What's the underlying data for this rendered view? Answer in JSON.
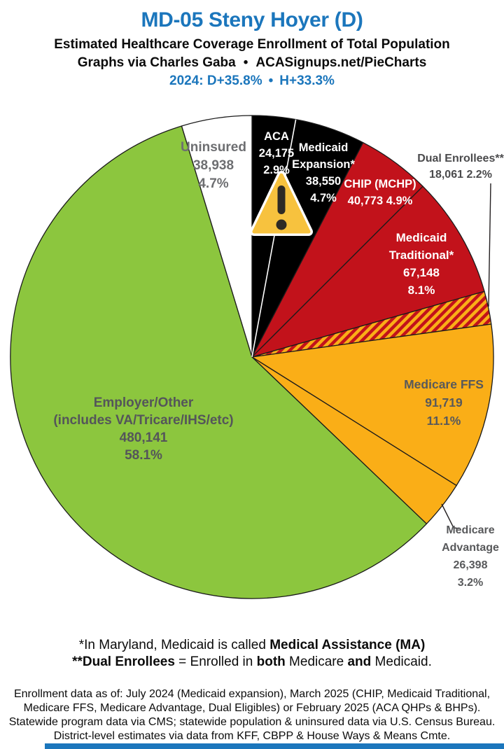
{
  "page": {
    "accent_blue": "#1B76BC",
    "background": "#FFFFFF"
  },
  "header": {
    "title": "MD-05 Steny Hoyer (D)",
    "subtitle": "Estimated Healthcare Coverage Enrollment of Total Population",
    "credit_left": "Graphs via Charles Gaba",
    "bullet": "•",
    "credit_right": "ACASignups.net/PieCharts",
    "partisan_left": "2024: D+35.8%",
    "partisan_right": "H+33.3%"
  },
  "chart_data": {
    "type": "pie",
    "title": "MD-05 Steny Hoyer (D) — Estimated Healthcare Coverage Enrollment of Total Population",
    "units": "people",
    "start_angle_deg": 0,
    "direction": "clockwise",
    "outline_color": "#1B1B1B",
    "slices": [
      {
        "id": "aca",
        "name": "ACA",
        "value": 24175,
        "pct": 2.9,
        "color": "#000000",
        "label_color": "#FFFFFF",
        "label_lines": [
          "ACA",
          "24,175",
          "2.9%"
        ]
      },
      {
        "id": "medicaid_expansion",
        "name": "Medicaid Expansion*",
        "value": 38550,
        "pct": 4.7,
        "color": "#000000",
        "label_color": "#FFFFFF",
        "label_lines": [
          "Medicaid",
          "Expansion*",
          "38,550",
          "4.7%"
        ]
      },
      {
        "id": "chip",
        "name": "CHIP (MCHP)",
        "value": 40773,
        "pct": 4.9,
        "color": "#C2121B",
        "label_color": "#FFFFFF",
        "label_lines": [
          "CHIP (MCHP)",
          "40,773 4.9%"
        ]
      },
      {
        "id": "medicaid_traditional",
        "name": "Medicaid Traditional*",
        "value": 67148,
        "pct": 8.1,
        "color": "#C2121B",
        "label_color": "#FFFFFF",
        "label_lines": [
          "Medicaid",
          "Traditional*",
          "67,148",
          "8.1%"
        ]
      },
      {
        "id": "dual_enrollees",
        "name": "Dual Enrollees**",
        "value": 18061,
        "pct": 2.2,
        "color": "hatch",
        "pattern": {
          "stripe": "#C2121B",
          "bg": "#FAAE17"
        },
        "label_color": "#4A4A4C",
        "label_lines": [
          "Dual Enrollees**",
          "18,061 2.2%"
        ]
      },
      {
        "id": "medicare_ffs",
        "name": "Medicare FFS",
        "value": 91719,
        "pct": 11.1,
        "color": "#FAAE17",
        "label_color": "#58595B",
        "label_lines": [
          "Medicare FFS",
          "91,719",
          "11.1%"
        ]
      },
      {
        "id": "medicare_advantage",
        "name": "Medicare Advantage",
        "value": 26398,
        "pct": 3.2,
        "color": "#FAAE17",
        "label_color": "#58595B",
        "label_lines": [
          "Medicare",
          "Advantage",
          "26,398",
          "3.2%"
        ]
      },
      {
        "id": "employer_other",
        "name": "Employer/Other (includes VA/Tricare/IHS/etc)",
        "value": 480141,
        "pct": 58.1,
        "color": "#8CC63E",
        "label_color": "#54555A",
        "label_lines": [
          "Employer/Other",
          "(includes VA/Tricare/IHS/etc)",
          "480,141",
          "58.1%"
        ]
      },
      {
        "id": "uninsured",
        "name": "Uninsured",
        "value": 38938,
        "pct": 4.7,
        "color": "#FFFFFF",
        "label_color": "#6D6E71",
        "label_lines": [
          "Uninsured",
          "38,938",
          "4.7%"
        ]
      }
    ]
  },
  "warning_icon": {
    "meaning": "warning-triangle",
    "fill": "#F7C23E",
    "border": "#FFFFFF",
    "mark_color": "#2E2A25"
  },
  "footnotes": {
    "line1_parts": [
      "*In Maryland, Medicaid is called ",
      "Medical Assistance (MA)"
    ],
    "line2_parts": [
      "**Dual Enrollees",
      " = Enrolled in ",
      "both",
      " Medicare ",
      "and",
      " Medicaid."
    ]
  },
  "sources_lines": [
    "Enrollment data as of: July 2024 (Medicaid expansion), March 2025 (CHIP, Medicaid Traditional,",
    "Medicare FFS, Medicare Advantage, Dual Eligibles) or February 2025 (ACA QHPs & BHPs).",
    "Statewide program data via CMS; statewide population & uninsured data via U.S. Census Bureau.",
    "District-level estimates via data from KFF, CBPP & House Ways & Means Cmte."
  ]
}
